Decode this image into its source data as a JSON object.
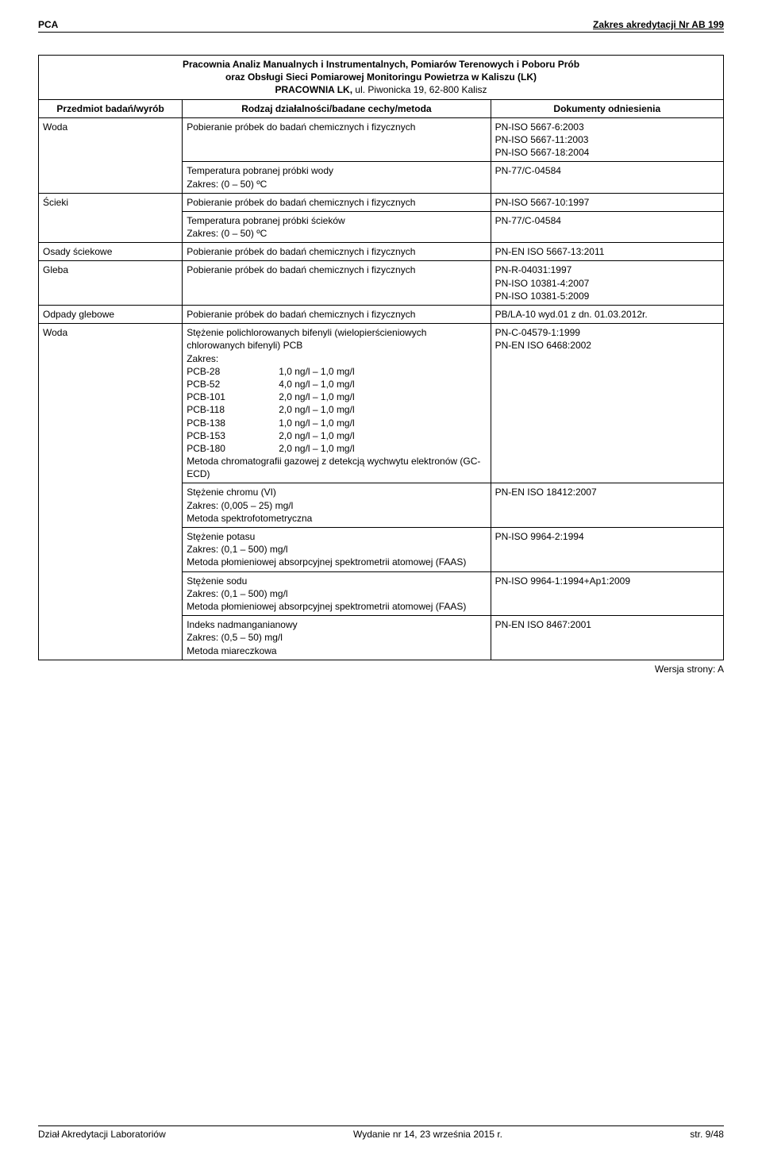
{
  "header": {
    "left": "PCA",
    "right": "Zakres akredytacji Nr AB 199"
  },
  "title": {
    "line1": "Pracownia Analiz Manualnych i Instrumentalnych, Pomiarów Terenowych i Poboru Prób",
    "line2": "oraz Obsługi Sieci Pomiarowej Monitoringu Powietrza w Kaliszu (LK)",
    "line3": "PRACOWNIA LK, ",
    "line3_suffix": "ul. Piwonicka 19, 62-800 Kalisz"
  },
  "columns": {
    "subject": "Przedmiot badań/wyrób",
    "method": "Rodzaj działalności/badane cechy/metoda",
    "doc": "Dokumenty odniesienia"
  },
  "rows": [
    {
      "subject": "Woda",
      "method": "Pobieranie próbek do badań chemicznych i fizycznych",
      "doc": "PN-ISO 5667-6:2003\nPN-ISO 5667-11:2003\nPN-ISO 5667-18:2004"
    },
    {
      "subject": "",
      "method": "Temperatura pobranej próbki wody\nZakres: (0 – 50) ºC",
      "doc": "PN-77/C-04584"
    },
    {
      "subject": "Ścieki",
      "method": "Pobieranie próbek do badań chemicznych i fizycznych",
      "doc": "PN-ISO 5667-10:1997"
    },
    {
      "subject": "",
      "method": "Temperatura pobranej próbki ścieków\nZakres: (0 – 50) ºC",
      "doc": "PN-77/C-04584"
    },
    {
      "subject": "Osady ściekowe",
      "method": "Pobieranie próbek do badań chemicznych i  fizycznych",
      "doc": "PN-EN ISO 5667-13:2011"
    },
    {
      "subject": "Gleba",
      "method": "Pobieranie próbek do badań chemicznych i fizycznych",
      "doc": "PN-R-04031:1997\nPN-ISO 10381-4:2007\nPN-ISO 10381-5:2009"
    },
    {
      "subject": "Odpady glebowe",
      "method": "Pobieranie próbek do badań chemicznych i fizycznych",
      "doc": "PB/LA-10 wyd.01 z dn. 01.03.2012r."
    }
  ],
  "woda_block": {
    "subject": "Woda",
    "pcb": {
      "title": "Stężenie polichlorowanych bifenyli (wielopierścieniowych chlorowanych bifenyli) PCB",
      "zakres_label": "Zakres:",
      "items": [
        {
          "name": "PCB-28",
          "range": "1,0 ng/l – 1,0 mg/l"
        },
        {
          "name": "PCB-52",
          "range": "4,0 ng/l – 1,0 mg/l"
        },
        {
          "name": "PCB-101",
          "range": "2,0 ng/l – 1,0 mg/l"
        },
        {
          "name": "PCB-118",
          "range": "2,0 ng/l – 1,0 mg/l"
        },
        {
          "name": "PCB-138",
          "range": "1,0 ng/l – 1,0 mg/l"
        },
        {
          "name": "PCB-153",
          "range": "2,0 ng/l – 1,0 mg/l"
        },
        {
          "name": "PCB-180",
          "range": "2,0 ng/l – 1,0 mg/l"
        }
      ],
      "method_text": "Metoda chromatografii gazowej z detekcją wychwytu elektronów (GC-ECD)",
      "doc": "PN-C-04579-1:1999\nPN-EN ISO 6468:2002"
    },
    "chromVI": {
      "method": "Stężenie chromu (VI)\nZakres: (0,005 – 25) mg/l\nMetoda spektrofotometryczna",
      "doc": "PN-EN ISO 18412:2007"
    },
    "potassium": {
      "method": "Stężenie potasu\nZakres: (0,1 – 500) mg/l\nMetoda płomieniowej absorpcyjnej spektrometrii atomowej (FAAS)",
      "doc": "PN-ISO 9964-2:1994"
    },
    "sodium": {
      "method": "Stężenie sodu\nZakres: (0,1 – 500) mg/l\nMetoda płomieniowej absorpcyjnej spektrometrii atomowej (FAAS)",
      "doc": "PN-ISO 9964-1:1994+Ap1:2009"
    },
    "permanganate": {
      "method": "Indeks nadmanganianowy\nZakres: (0,5 – 50) mg/l\nMetoda miareczkowa",
      "doc": "PN-EN ISO 8467:2001"
    }
  },
  "version": "Wersja strony: A",
  "footer": {
    "left": "Dział Akredytacji Laboratoriów",
    "center": "Wydanie nr 14, 23 września 2015 r.",
    "right": "str. 9/48"
  }
}
